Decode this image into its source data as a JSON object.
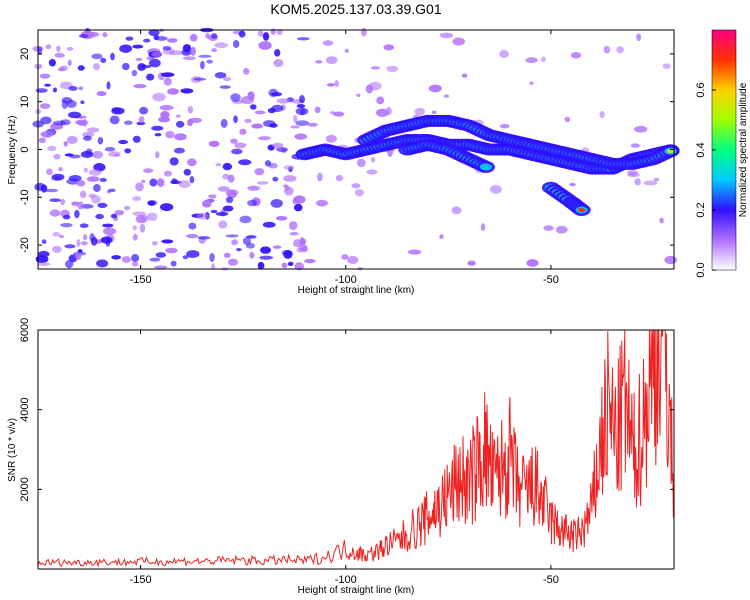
{
  "title": "KOM5.2025.137.03.39.G01",
  "colors": {
    "snr_line": "#ee2222",
    "axis": "#000000",
    "colormap": [
      "#ffffff",
      "#b070ff",
      "#3010ff",
      "#00c8ff",
      "#00ff80",
      "#a0ff00",
      "#ffd000",
      "#ff3000",
      "#ff0080"
    ]
  },
  "chart_data": [
    {
      "type": "heatmap",
      "xlabel": "Height of straight line (km)",
      "ylabel": "Frequency (Hz)",
      "xlim": [
        -175,
        -20
      ],
      "ylim": [
        -25,
        25
      ],
      "xticks": [
        -150,
        -100,
        -50
      ],
      "yticks": [
        -20,
        -10,
        0,
        10,
        20
      ],
      "colorbar": {
        "label": "Normalized spectral amplitude",
        "range": [
          0,
          0.8
        ],
        "ticks": [
          0.0,
          0.2,
          0.4,
          0.6
        ]
      },
      "ridges": [
        {
          "x": [
            -110,
            -105,
            -100,
            -95,
            -90,
            -85,
            -80,
            -75,
            -70,
            -65,
            -60,
            -55,
            -50,
            -45,
            -40,
            -35,
            -30,
            -25,
            -20
          ],
          "y": [
            -1,
            0,
            -1,
            0,
            1,
            2,
            2,
            1,
            1,
            0,
            0,
            -1,
            -2,
            -3,
            -4,
            -4,
            -2,
            -1,
            0
          ]
        },
        {
          "x": [
            -95,
            -90,
            -85,
            -80,
            -75,
            -70,
            -65,
            -60,
            -55,
            -50,
            -45,
            -40,
            -35,
            -30,
            -25,
            -20
          ],
          "y": [
            2,
            4,
            5,
            6,
            6,
            5,
            3,
            2,
            1,
            0,
            -1,
            -2,
            -3,
            -3,
            -2,
            0
          ]
        },
        {
          "x": [
            -85,
            -80,
            -75,
            -70,
            -65
          ],
          "y": [
            0,
            1,
            0,
            -2,
            -4
          ]
        },
        {
          "x": [
            -50,
            -45,
            -42
          ],
          "y": [
            -8,
            -11,
            -13
          ]
        }
      ]
    },
    {
      "type": "line",
      "xlabel": "Height of straight line (km)",
      "ylabel": "SNR (10 * v/v)",
      "xlim": [
        -175,
        -20
      ],
      "ylim": [
        0,
        6000
      ],
      "xticks": [
        -150,
        -100,
        -50
      ],
      "yticks": [
        2000,
        4000,
        6000
      ],
      "series": [
        {
          "x": [
            -175,
            -170,
            -165,
            -160,
            -155,
            -150,
            -145,
            -140,
            -135,
            -130,
            -125,
            -120,
            -115,
            -110,
            -105,
            -100,
            -97,
            -95,
            -92,
            -90,
            -87,
            -85,
            -82,
            -80,
            -78,
            -76,
            -74,
            -72,
            -70,
            -68,
            -66,
            -64,
            -62,
            -60,
            -58,
            -56,
            -54,
            -52,
            -50,
            -48,
            -46,
            -44,
            -42,
            -40,
            -38,
            -36,
            -34,
            -32,
            -30,
            -28,
            -26,
            -24,
            -22,
            -20
          ],
          "y": [
            150,
            170,
            160,
            180,
            170,
            190,
            180,
            200,
            190,
            210,
            220,
            200,
            230,
            210,
            300,
            500,
            400,
            350,
            450,
            600,
            700,
            900,
            1100,
            1300,
            1500,
            1700,
            2000,
            2300,
            2100,
            2600,
            3000,
            2200,
            2500,
            2800,
            2000,
            1900,
            2100,
            1700,
            1200,
            1000,
            900,
            800,
            1000,
            1500,
            3000,
            4000,
            3200,
            4300,
            2800,
            3400,
            4500,
            6000,
            5500,
            1800
          ]
        }
      ]
    }
  ]
}
